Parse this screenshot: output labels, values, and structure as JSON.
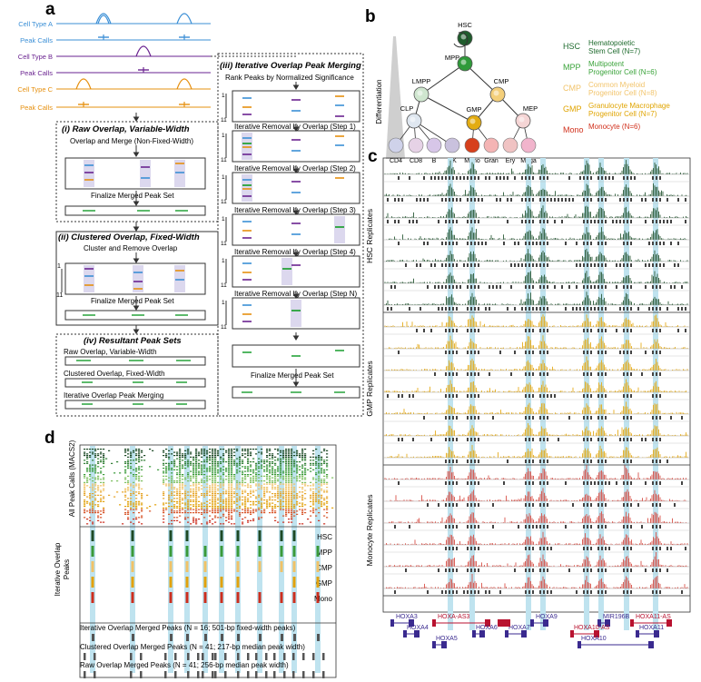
{
  "panels": {
    "a": "a",
    "b": "b",
    "c": "c",
    "d": "d"
  },
  "panel_a": {
    "tracks": [
      {
        "label": "Cell Type A",
        "color": "#3b8fd6"
      },
      {
        "label": "Peak Calls",
        "color": "#3b8fd6"
      },
      {
        "label": "Cell Type B",
        "color": "#6a2390"
      },
      {
        "label": "Peak Calls",
        "color": "#6a2390"
      },
      {
        "label": "Cell Type C",
        "color": "#e6900f"
      },
      {
        "label": "Peak Calls",
        "color": "#e6900f"
      }
    ],
    "raw": {
      "title": "(i) Raw Overlap, Variable-Width",
      "step1": "Overlap and Merge (Non-Fixed-Width)",
      "step2": "Finalize Merged Peak Set"
    },
    "clustered": {
      "title": "(ii) Clustered Overlap, Fixed-Width",
      "step1": "Cluster and Remove Overlap",
      "step2": "Finalize Merged Peak Set",
      "axis_top": "1",
      "axis_bottom": "11"
    },
    "iterative": {
      "title": "(iii) Iterative Overlap Peak Merging",
      "rank": "Rank Peaks by Normalized Significance",
      "steps": [
        "Iterative Removal by Overlap (Step 1)",
        "Iterative Removal by Overlap (Step 2)",
        "Iterative Removal by Overlap (Step 3)",
        "Iterative Removal by Overlap (Step 4)",
        "Iterative Removal by Overlap (Step N)"
      ],
      "final": "Finalize Merged Peak Set",
      "axis_top": "1",
      "axis_bottom": "11"
    },
    "resultant": {
      "title": "(iv) Resultant Peak Sets",
      "items": [
        "Raw Overlap, Variable-Width",
        "Clustered Overlap, Fixed-Width",
        "Iterative Overlap Peak Merging"
      ]
    }
  },
  "panel_b": {
    "axis_label": "Differentiation",
    "nodes": [
      "HSC",
      "MPP",
      "LMPP",
      "CMP",
      "CLP",
      "GMP",
      "MEP"
    ],
    "leaves": [
      "CD4",
      "CD8",
      "B",
      "NK",
      "Mono",
      "Gran",
      "Ery",
      "Mega"
    ],
    "legend": [
      {
        "abbr": "HSC",
        "line1": "Hematopoietic",
        "line2": "Stem Cell (N=7)",
        "color": "#1f6b2e"
      },
      {
        "abbr": "MPP",
        "line1": "Multipotent",
        "line2": "Progenitor Cell (N=6)",
        "color": "#3aa33a"
      },
      {
        "abbr": "CMP",
        "line1": "Common Myeloid",
        "line2": "Progenitor Cell (N=8)",
        "color": "#f2c46b"
      },
      {
        "abbr": "GMP",
        "line1": "Granulocyte Macrophage",
        "line2": "Progenitor Cell (N=7)",
        "color": "#e0a400"
      },
      {
        "abbr": "Mono",
        "line1": "Monocyte (N=6)",
        "line2": "",
        "color": "#d1301c"
      }
    ]
  },
  "panel_c": {
    "groups": [
      {
        "label": "HSC Replicates",
        "color": "#2e5d3a",
        "n": 7
      },
      {
        "label": "GMP Replicates",
        "color": "#e6ad1e",
        "n": 7
      },
      {
        "label": "Monocyte Replicates",
        "color": "#d9534a",
        "n": 6
      }
    ],
    "genes": [
      {
        "name": "HOXA3",
        "color": "#3a2a8f"
      },
      {
        "name": "HOXA-AS3",
        "color": "#b8122f"
      },
      {
        "name": "HOXA9",
        "color": "#3a2a8f"
      },
      {
        "name": "MIR196B",
        "color": "#3a2a8f"
      },
      {
        "name": "HOXA11-AS",
        "color": "#b8122f"
      },
      {
        "name": "HOXA4",
        "color": "#3a2a8f"
      },
      {
        "name": "HOXA6",
        "color": "#3a2a8f"
      },
      {
        "name": "HOXA7",
        "color": "#3a2a8f"
      },
      {
        "name": "HOXA10-AS",
        "color": "#b8122f"
      },
      {
        "name": "HOXA11",
        "color": "#3a2a8f"
      },
      {
        "name": "HOXA5",
        "color": "#3a2a8f"
      },
      {
        "name": "HOXA10",
        "color": "#3a2a8f"
      }
    ]
  },
  "panel_d": {
    "ylabel_top": "All Peak Calls (MACS2)",
    "ylabel_mid_1": "Iterative Overlap",
    "ylabel_mid_2": "Peaks",
    "cell_types": [
      {
        "name": "HSC",
        "color": "#1d4a26"
      },
      {
        "name": "MPP",
        "color": "#3a9a3a"
      },
      {
        "name": "CMP",
        "color": "#f0c267"
      },
      {
        "name": "GMP",
        "color": "#e2a20c"
      },
      {
        "name": "Mono",
        "color": "#cc2e1e"
      }
    ],
    "merged": [
      "Iterative Overlap Merged Peaks (N = 16; 501-bp fixed-width peaks)",
      "Clustered Overlap Merged Peaks (N = 41; 217-bp median peak width)",
      "Raw Overlap Merged Peaks (N = 41; 256-bp median peak width)"
    ]
  },
  "colors": {
    "highlight": "#bfe3ef",
    "box": "#333333"
  }
}
